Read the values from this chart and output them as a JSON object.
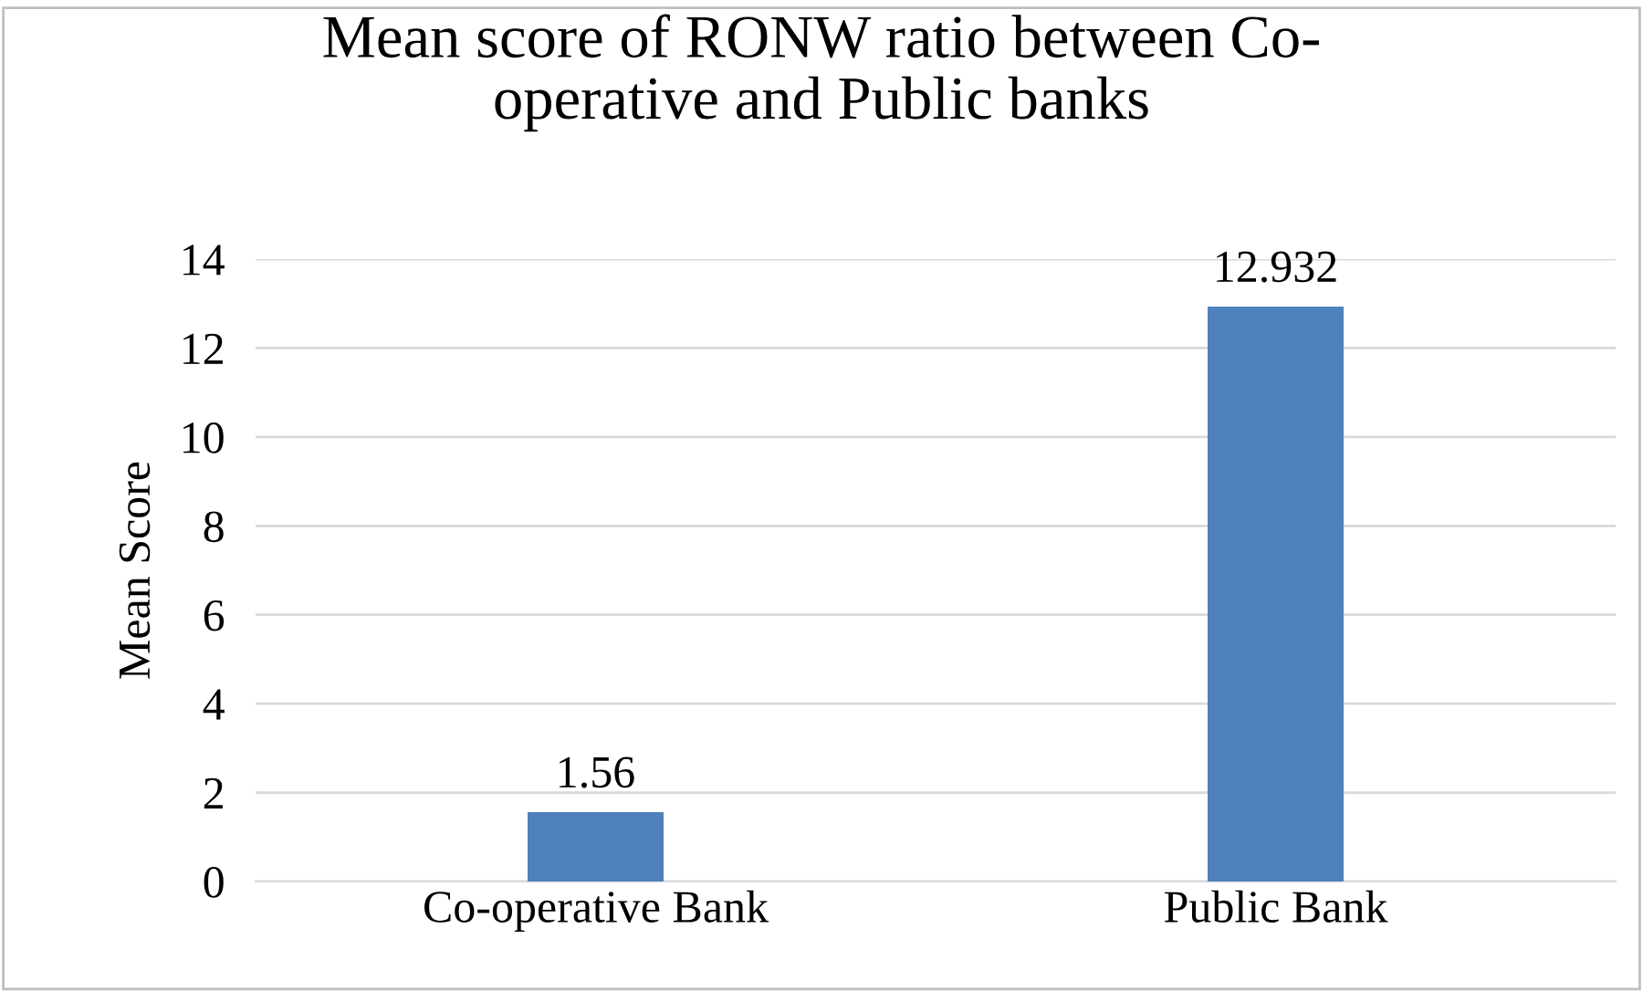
{
  "chart_data": {
    "type": "bar",
    "title": "Mean score of RONW ratio between Co-\noperative and Public banks",
    "ylabel": "Mean Score",
    "categories": [
      "Co-operative Bank",
      "Public Bank"
    ],
    "values": [
      1.56,
      12.932
    ],
    "color": "#4f81bd",
    "ylim": [
      0,
      14
    ],
    "yticks": [
      0,
      2,
      4,
      6,
      8,
      10,
      12,
      14
    ],
    "grid": "y",
    "data_labels": true
  }
}
